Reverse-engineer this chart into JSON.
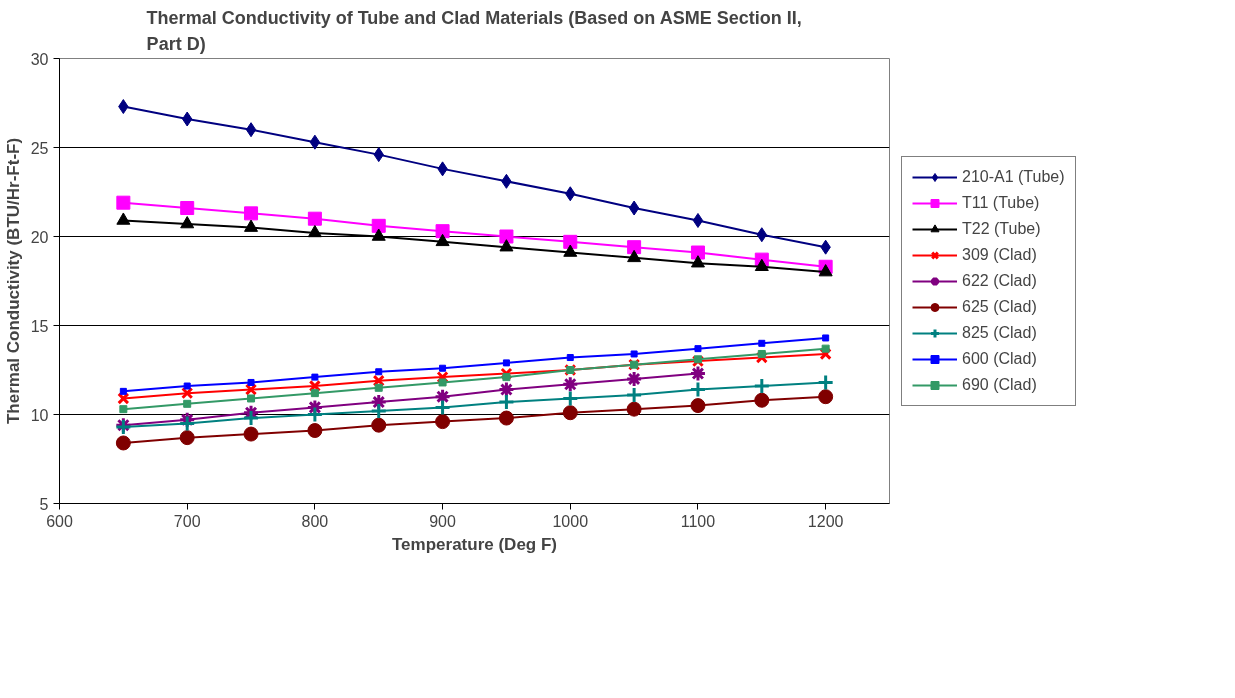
{
  "chart_data": {
    "type": "line",
    "title": "Thermal Conductivity of Tube and Clad Materials (Based on ASME Section II, Part D)",
    "xlabel": "Temperature (Deg F)",
    "ylabel": "Thermal Conductivity (BTU/Hr-Ft-F)",
    "x": [
      650,
      700,
      750,
      800,
      850,
      900,
      950,
      1000,
      1050,
      1100,
      1150,
      1200
    ],
    "xlim": [
      600,
      1250
    ],
    "xticks": [
      600,
      700,
      800,
      900,
      1000,
      1100,
      1200
    ],
    "ylim": [
      5,
      30
    ],
    "yticks": [
      5,
      10,
      15,
      20,
      25,
      30
    ],
    "grid": "y",
    "legend": "right",
    "series": [
      {
        "name": "210-A1 (Tube)",
        "color": "#000080",
        "marker": "diamond",
        "values": [
          27.3,
          26.6,
          26.0,
          25.3,
          24.6,
          23.8,
          23.1,
          22.4,
          21.6,
          20.9,
          20.1,
          19.4
        ]
      },
      {
        "name": "T11 (Tube)",
        "color": "#ff00ff",
        "marker": "square",
        "values": [
          21.9,
          21.6,
          21.3,
          21.0,
          20.6,
          20.3,
          20.0,
          19.7,
          19.4,
          19.1,
          18.7,
          18.3
        ]
      },
      {
        "name": "T22 (Tube)",
        "color": "#000000",
        "marker": "triangle",
        "values": [
          20.9,
          20.7,
          20.5,
          20.2,
          20.0,
          19.7,
          19.4,
          19.1,
          18.8,
          18.5,
          18.3,
          18.0
        ]
      },
      {
        "name": "309 (Clad)",
        "color": "#ff0000",
        "marker": "cross",
        "values": [
          10.9,
          11.2,
          11.4,
          11.6,
          11.9,
          12.1,
          12.3,
          12.5,
          12.8,
          13.0,
          13.2,
          13.4
        ]
      },
      {
        "name": "622 (Clad)",
        "color": "#800080",
        "marker": "cross",
        "values": [
          9.4,
          9.7,
          10.1,
          10.4,
          10.7,
          11.0,
          11.4,
          11.7,
          12.0,
          12.3,
          null,
          null
        ]
      },
      {
        "name": "625 (Clad)",
        "color": "#800000",
        "marker": "circle",
        "values": [
          8.4,
          8.7,
          8.9,
          9.1,
          9.4,
          9.6,
          9.8,
          10.1,
          10.3,
          10.5,
          10.8,
          11.0
        ]
      },
      {
        "name": "825 (Clad)",
        "color": "#008080",
        "marker": "cross",
        "values": [
          9.3,
          9.5,
          9.8,
          10.0,
          10.2,
          10.4,
          10.7,
          10.9,
          11.1,
          11.4,
          11.6,
          11.8
        ]
      },
      {
        "name": "600 (Clad)",
        "color": "#0000ff",
        "marker": "square",
        "values": [
          11.3,
          11.6,
          11.8,
          12.1,
          12.4,
          12.6,
          12.9,
          13.2,
          13.4,
          13.7,
          14.0,
          14.3
        ]
      },
      {
        "name": "690 (Clad)",
        "color": "#339966",
        "marker": "square",
        "values": [
          10.3,
          10.6,
          10.9,
          11.2,
          11.5,
          11.8,
          12.1,
          12.5,
          12.8,
          13.1,
          13.4,
          13.7
        ]
      }
    ]
  }
}
